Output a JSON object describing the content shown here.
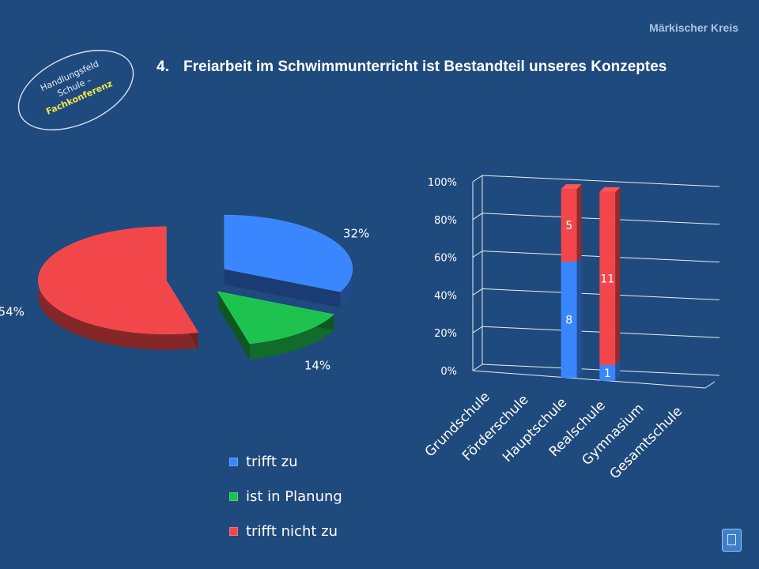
{
  "header": {
    "brand": "Märkischer Kreis",
    "title_number": "4.",
    "title_text": "Freiarbeit im Schwimmunterricht ist Bestandteil unseres Konzeptes"
  },
  "seal": {
    "line1": "Handlungsfeld",
    "line2": "Schule –",
    "line3": "Fachkonferenz"
  },
  "legend": {
    "items": [
      {
        "label": "trifft zu",
        "color": "#3a86ff"
      },
      {
        "label": "ist in Planung",
        "color": "#1ec24e"
      },
      {
        "label": "trifft nicht zu",
        "color": "#f2474a"
      }
    ]
  },
  "chart_data": [
    {
      "type": "pie",
      "title": "",
      "slices": [
        {
          "name": "trifft zu",
          "value": 32,
          "label": "32%",
          "color": "#3a86ff"
        },
        {
          "name": "ist in Planung",
          "value": 14,
          "label": "14%",
          "color": "#1ec24e"
        },
        {
          "name": "trifft nicht zu",
          "value": 54,
          "label": "54%",
          "color": "#f2474a"
        }
      ],
      "legend_position": "bottom"
    },
    {
      "type": "bar",
      "stacked": true,
      "percent_stacked": true,
      "title": "",
      "xlabel": "",
      "ylabel": "",
      "categories": [
        "Grundschule",
        "Förderschule",
        "Hauptschule",
        "Realschule",
        "Gymnasium",
        "Gesamtschule"
      ],
      "ylim": [
        0,
        100
      ],
      "yticks": [
        "0%",
        "20%",
        "40%",
        "60%",
        "80%",
        "100%"
      ],
      "grid": true,
      "series": [
        {
          "name": "trifft zu",
          "color": "#3a86ff",
          "values": [
            0,
            0,
            8,
            1,
            0,
            0
          ],
          "labels": [
            "",
            "",
            "8",
            "1",
            "",
            ""
          ]
        },
        {
          "name": "trifft nicht zu",
          "color": "#f2474a",
          "values": [
            0,
            0,
            5,
            11,
            0,
            0
          ],
          "labels": [
            "",
            "",
            "5",
            "11",
            "",
            ""
          ]
        }
      ]
    }
  ]
}
